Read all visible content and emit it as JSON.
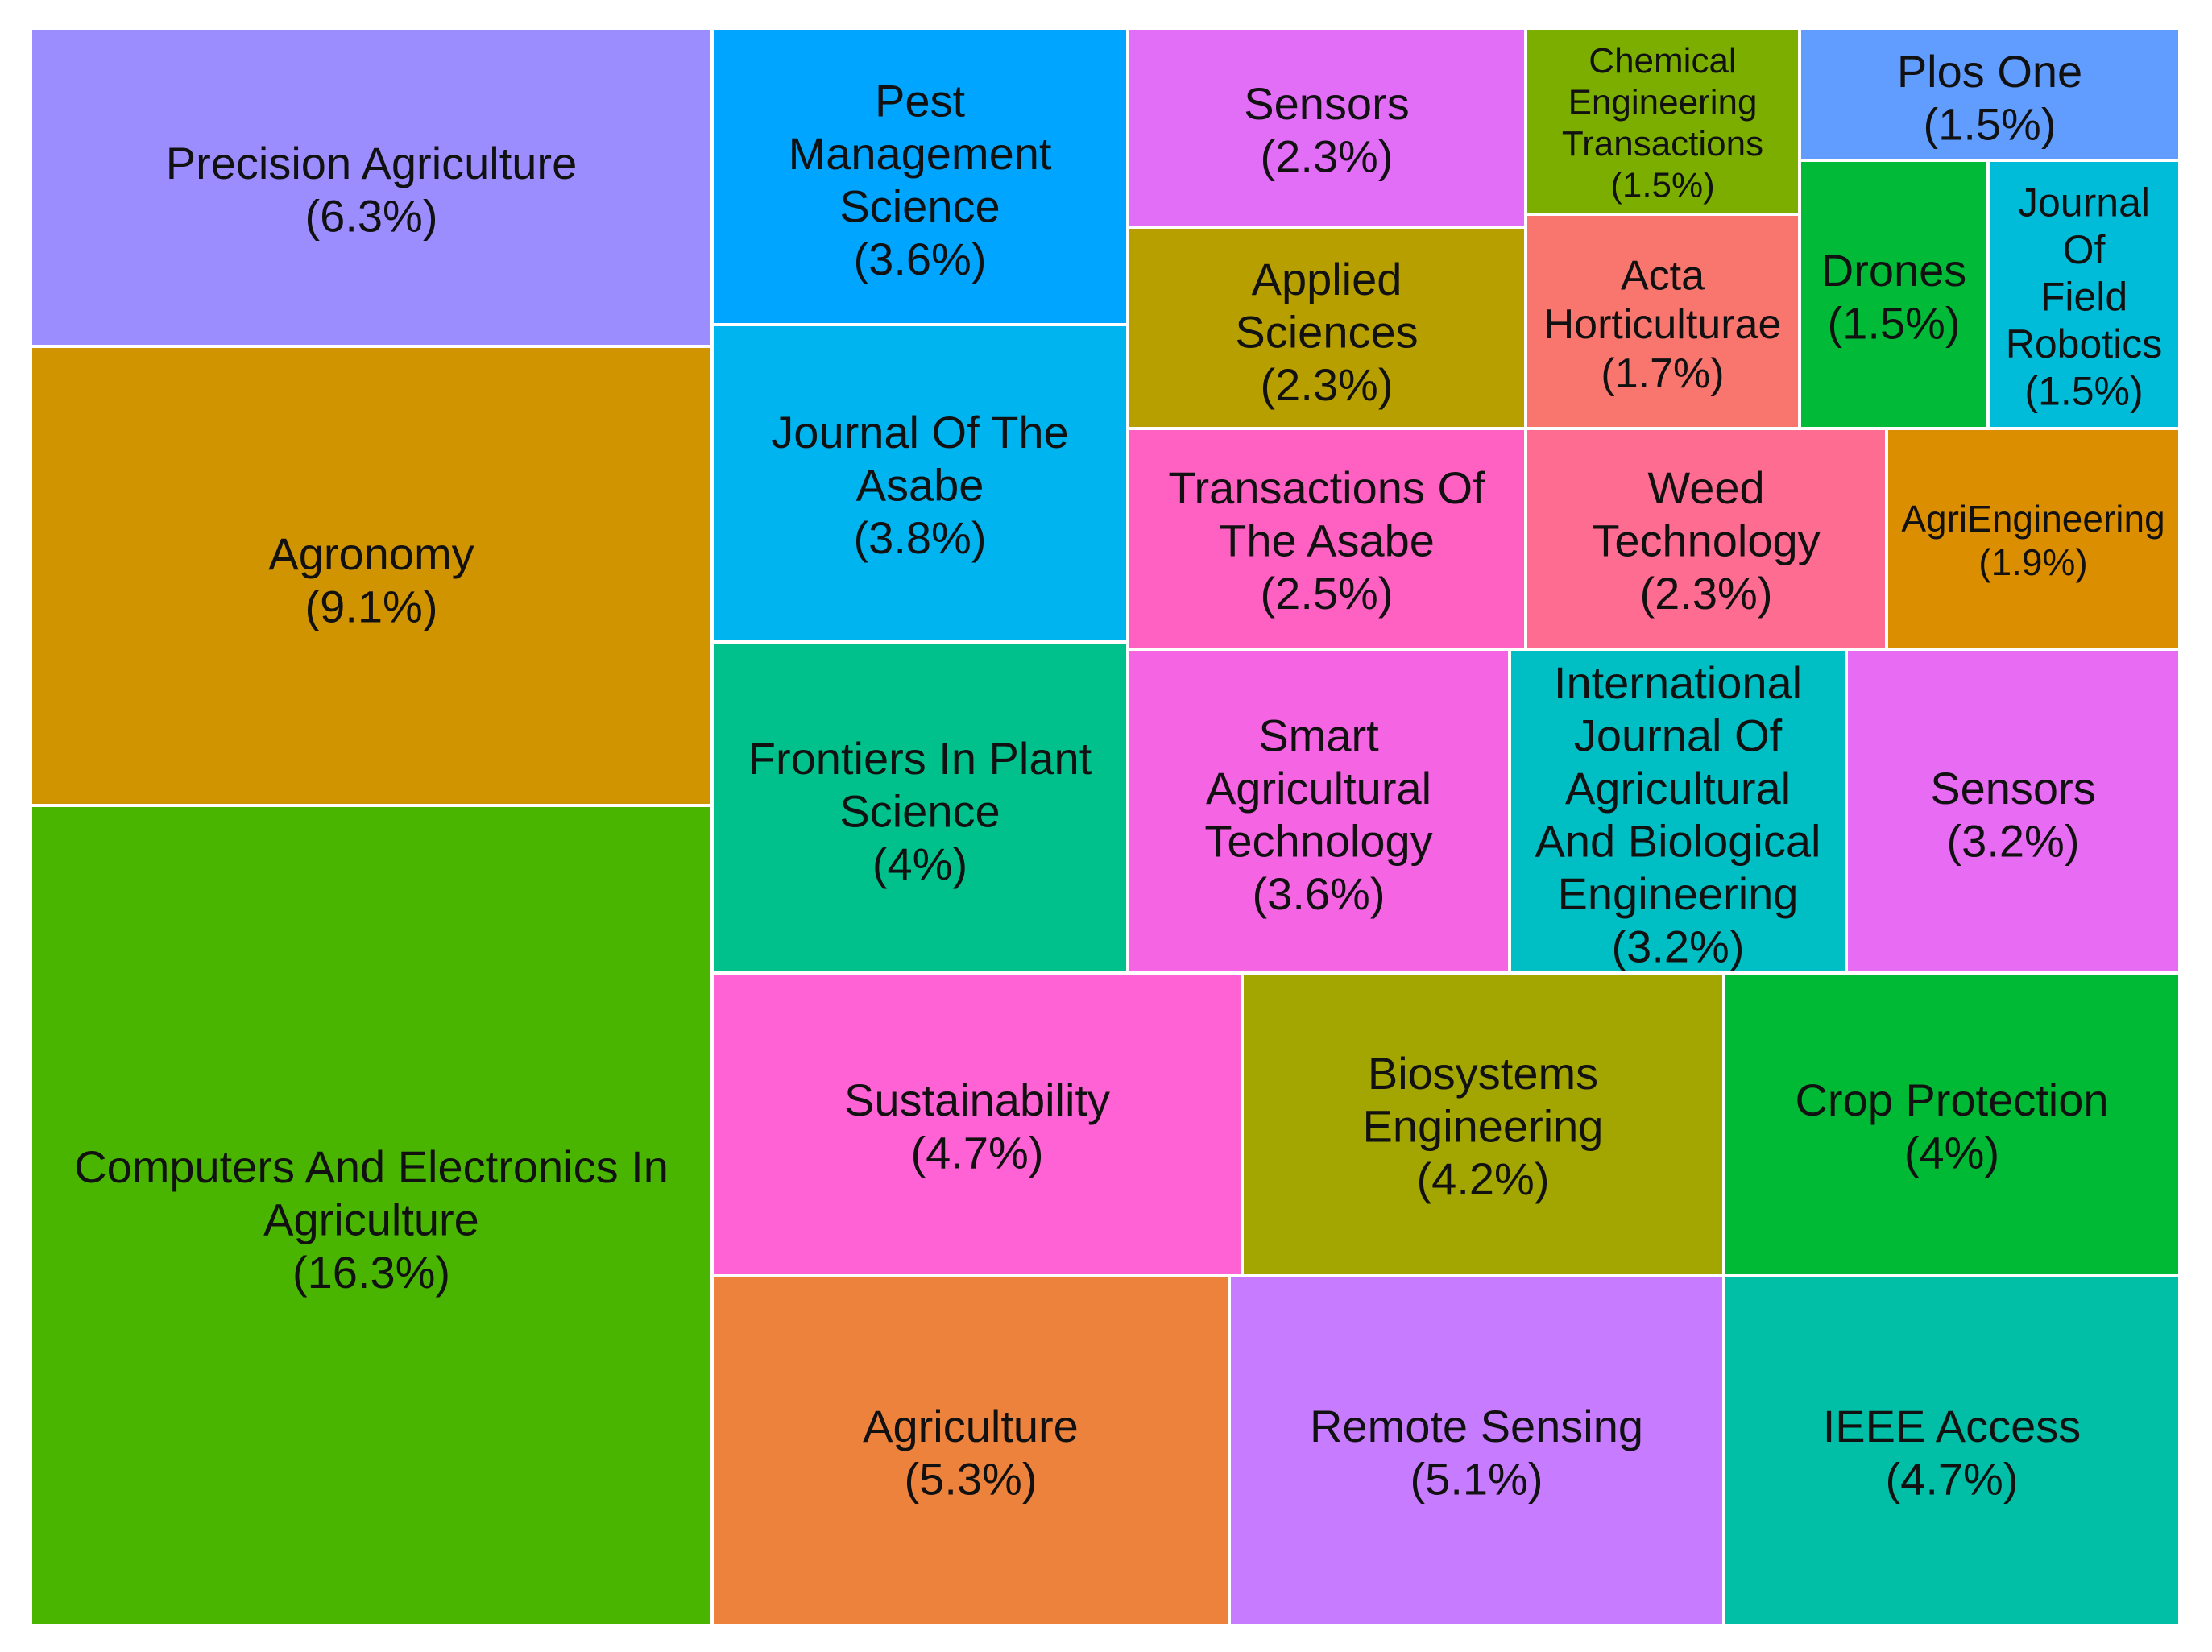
{
  "chart_data": {
    "type": "treemap",
    "title": "",
    "items": [
      {
        "name": "Precision Agriculture",
        "lines": [
          "Precision Agriculture",
          "(6.3%)"
        ],
        "percent": 6.3,
        "color": "#9C8DFF"
      },
      {
        "name": "Agronomy",
        "lines": [
          "Agronomy",
          "(9.1%)"
        ],
        "percent": 9.1,
        "color": "#CF9400"
      },
      {
        "name": "Computers And Electronics In Agriculture",
        "lines": [
          "Computers And Electronics In",
          "Agriculture",
          "(16.3%)"
        ],
        "percent": 16.3,
        "color": "#49B500"
      },
      {
        "name": "Pest Management Science",
        "lines": [
          "Pest",
          "Management",
          "Science",
          "(3.6%)"
        ],
        "percent": 3.6,
        "color": "#00A5FF"
      },
      {
        "name": "Journal Of The Asabe",
        "lines": [
          "Journal Of The",
          "Asabe",
          "(3.8%)"
        ],
        "percent": 3.8,
        "color": "#00B4EF"
      },
      {
        "name": "Frontiers In Plant Science",
        "lines": [
          "Frontiers In Plant",
          "Science",
          "(4%)"
        ],
        "percent": 4.0,
        "color": "#00C08B"
      },
      {
        "name": "Sensors",
        "lines": [
          "Sensors",
          "(2.3%)"
        ],
        "percent": 2.3,
        "color": "#E26EF7"
      },
      {
        "name": "Applied Sciences",
        "lines": [
          "Applied",
          "Sciences",
          "(2.3%)"
        ],
        "percent": 2.3,
        "color": "#B79F00"
      },
      {
        "name": "Chemical Engineering Transactions",
        "lines": [
          "Chemical",
          "Engineering",
          "Transactions",
          "(1.5%)"
        ],
        "percent": 1.5,
        "color": "#7CAE00"
      },
      {
        "name": "Acta Horticulturae",
        "lines": [
          "Acta",
          "Horticulturae",
          "(1.7%)"
        ],
        "percent": 1.7,
        "color": "#F8766D"
      },
      {
        "name": "Plos One",
        "lines": [
          "Plos One",
          "(1.5%)"
        ],
        "percent": 1.5,
        "color": "#619CFF"
      },
      {
        "name": "Drones",
        "lines": [
          "Drones",
          "(1.5%)"
        ],
        "percent": 1.5,
        "color": "#00BA38"
      },
      {
        "name": "Journal Of Field Robotics",
        "lines": [
          "Journal",
          "Of",
          "Field",
          "Robotics",
          "(1.5%)"
        ],
        "percent": 1.5,
        "color": "#00BCD8"
      },
      {
        "name": "Transactions Of The Asabe",
        "lines": [
          "Transactions Of",
          "The Asabe",
          "(2.5%)"
        ],
        "percent": 2.5,
        "color": "#FF61C3"
      },
      {
        "name": "Weed Technology",
        "lines": [
          "Weed",
          "Technology",
          "(2.3%)"
        ],
        "percent": 2.3,
        "color": "#FF6C91"
      },
      {
        "name": "AgriEngineering",
        "lines": [
          "AgriEngineering",
          "(1.9%)"
        ],
        "percent": 1.9,
        "color": "#DB8E00"
      },
      {
        "name": "Smart Agricultural Technology",
        "lines": [
          "Smart",
          "Agricultural",
          "Technology",
          "(3.6%)"
        ],
        "percent": 3.6,
        "color": "#F564E3"
      },
      {
        "name": "International Journal Of Agricultural And Biological Engineering",
        "lines": [
          "International",
          "Journal Of",
          "Agricultural",
          "And Biological",
          "Engineering",
          "(3.2%)"
        ],
        "percent": 3.2,
        "color": "#00BFC4"
      },
      {
        "name": "Sensors",
        "lines": [
          "Sensors",
          "(3.2%)"
        ],
        "percent": 3.2,
        "color": "#E76BF3"
      },
      {
        "name": "Sustainability",
        "lines": [
          "Sustainability",
          "(4.7%)"
        ],
        "percent": 4.7,
        "color": "#FF62D4"
      },
      {
        "name": "Biosystems Engineering",
        "lines": [
          "Biosystems",
          "Engineering",
          "(4.2%)"
        ],
        "percent": 4.2,
        "color": "#A3A500"
      },
      {
        "name": "Crop Protection",
        "lines": [
          "Crop Protection",
          "(4%)"
        ],
        "percent": 4.0,
        "color": "#00B935"
      },
      {
        "name": "Agriculture",
        "lines": [
          "Agriculture",
          "(5.3%)"
        ],
        "percent": 5.3,
        "color": "#EC823C"
      },
      {
        "name": "Remote Sensing",
        "lines": [
          "Remote Sensing",
          "(5.1%)"
        ],
        "percent": 5.1,
        "color": "#C77CFF"
      },
      {
        "name": "IEEE Access",
        "lines": [
          "IEEE Access",
          "(4.7%)"
        ],
        "percent": 4.7,
        "color": "#00BFA6"
      }
    ]
  }
}
